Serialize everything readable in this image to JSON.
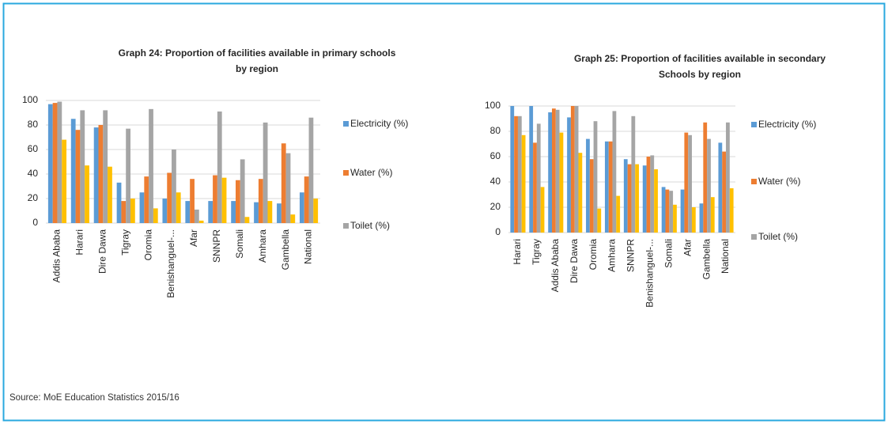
{
  "chart_data": [
    {
      "type": "bar",
      "title": [
        "Graph 24: Proportion of facilities available  in primary schools",
        "by region"
      ],
      "categories": [
        "Addis Ababa",
        "Harari",
        "Dire Dawa",
        "Tigray",
        "Oromia",
        "Benishanguel-...",
        "Afar",
        "SNNPR",
        "Somali",
        "Amhara",
        "Gambella",
        "National"
      ],
      "series": [
        {
          "name": "Electricity (%)",
          "color": "#5b9bd5",
          "values": [
            97,
            85,
            78,
            33,
            25,
            20,
            18,
            18,
            18,
            17,
            16,
            25
          ]
        },
        {
          "name": "Water (%)",
          "color": "#ed7d31",
          "values": [
            98,
            76,
            80,
            18,
            38,
            41,
            36,
            39,
            35,
            36,
            65,
            38
          ]
        },
        {
          "name": "Toilet (%)",
          "color": "#a5a5a5",
          "values": [
            99,
            92,
            92,
            77,
            93,
            60,
            11,
            91,
            52,
            82,
            57,
            86
          ]
        },
        {
          "color": "#ffc000",
          "values": [
            68,
            47,
            46,
            20,
            12,
            25,
            2,
            37,
            5,
            18,
            7,
            20
          ]
        }
      ],
      "ylim": [
        0,
        100
      ],
      "yticks": [
        0,
        20,
        40,
        60,
        80,
        100
      ],
      "grid": true,
      "legend": "right"
    },
    {
      "type": "bar",
      "title": [
        "Graph 25: Proportion of facilities available  in secondary",
        "Schools by region"
      ],
      "categories": [
        "Harari",
        "Tigray",
        "Addis Ababa",
        "Dire Dawa",
        "Oromia",
        "Amhara",
        "SNNPR",
        "Benishanguel-...",
        "Somali",
        "Afar",
        "Gambella",
        "National"
      ],
      "series": [
        {
          "name": "Electricity (%)",
          "color": "#5b9bd5",
          "values": [
            100,
            100,
            95,
            91,
            74,
            72,
            58,
            53,
            36,
            34,
            23,
            71
          ]
        },
        {
          "name": "Water (%)",
          "color": "#ed7d31",
          "values": [
            92,
            71,
            98,
            100,
            58,
            72,
            54,
            60,
            34,
            79,
            87,
            64
          ]
        },
        {
          "name": "Toilet (%)",
          "color": "#a5a5a5",
          "values": [
            92,
            86,
            97,
            100,
            88,
            96,
            92,
            61,
            33,
            77,
            74,
            87
          ]
        },
        {
          "color": "#ffc000",
          "values": [
            77,
            36,
            79,
            63,
            19,
            29,
            54,
            50,
            22,
            20,
            28,
            35
          ]
        }
      ],
      "ylim": [
        0,
        100
      ],
      "yticks": [
        0,
        20,
        40,
        60,
        80,
        100
      ],
      "grid": true,
      "legend": "right"
    }
  ],
  "source": "Source: MoE Education Statistics 2015/16"
}
